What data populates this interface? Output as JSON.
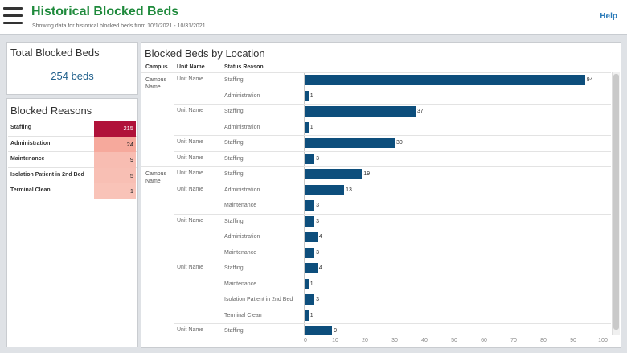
{
  "header": {
    "title": "Historical Blocked Beds",
    "subtitle": "Showing data for historical blocked beds from 10/1/2021 - 10/31/2021",
    "help_label": "Help",
    "menu_icon": "hamburger-menu-icon"
  },
  "colors": {
    "title_green": "#1f8a3c",
    "accent_blue": "#1f5f8b",
    "bar_blue": "#0d4e7c",
    "heat_dark": "#b0123a",
    "heat_light": "#f7b8ae"
  },
  "total_panel": {
    "title": "Total Blocked Beds",
    "value": "254",
    "unit": "beds"
  },
  "reasons_panel": {
    "title": "Blocked Reasons",
    "rows": [
      {
        "label": "Staffing",
        "value": "215",
        "color": "#b0123a",
        "text_color": "#ffffff"
      },
      {
        "label": "Administration",
        "value": "24",
        "color": "#f6a99c",
        "text_color": "#222222"
      },
      {
        "label": "Maintenance",
        "value": "9",
        "color": "#f8bdb2",
        "text_color": "#222222"
      },
      {
        "label": "Isolation Patient in 2nd Bed",
        "value": "5",
        "color": "#f8bfb4",
        "text_color": "#222222"
      },
      {
        "label": "Terminal Clean",
        "value": "1",
        "color": "#f9c3b8",
        "text_color": "#222222"
      }
    ]
  },
  "location_panel": {
    "title": "Blocked Beds by Location",
    "columns": {
      "campus": "Campus",
      "unit": "Unit Name",
      "status": "Status Reason"
    }
  },
  "chart_data": {
    "type": "bar",
    "orientation": "horizontal",
    "title": "Blocked Beds by Location",
    "xlim": [
      0,
      100
    ],
    "x_ticks": [
      0,
      10,
      20,
      30,
      40,
      50,
      60,
      70,
      80,
      90,
      100
    ],
    "rows": [
      {
        "campus": "Campus Name",
        "unit": "Unit Name",
        "status": "Staffing",
        "value": 94
      },
      {
        "campus": "",
        "unit": "",
        "status": "Administration",
        "value": 1
      },
      {
        "campus": "",
        "unit": "Unit Name",
        "status": "Staffing",
        "value": 37
      },
      {
        "campus": "",
        "unit": "",
        "status": "Administration",
        "value": 1
      },
      {
        "campus": "",
        "unit": "Unit Name",
        "status": "Staffing",
        "value": 30
      },
      {
        "campus": "",
        "unit": "Unit Name",
        "status": "Staffing",
        "value": 3
      },
      {
        "campus": "Campus Name",
        "unit": "Unit Name",
        "status": "Staffing",
        "value": 19
      },
      {
        "campus": "",
        "unit": "Unit Name",
        "status": "Administration",
        "value": 13
      },
      {
        "campus": "",
        "unit": "",
        "status": "Maintenance",
        "value": 3
      },
      {
        "campus": "",
        "unit": "Unit Name",
        "status": "Staffing",
        "value": 3
      },
      {
        "campus": "",
        "unit": "",
        "status": "Administration",
        "value": 4
      },
      {
        "campus": "",
        "unit": "",
        "status": "Maintenance",
        "value": 3
      },
      {
        "campus": "",
        "unit": "Unit Name",
        "status": "Staffing",
        "value": 4
      },
      {
        "campus": "",
        "unit": "",
        "status": "Maintenance",
        "value": 1
      },
      {
        "campus": "",
        "unit": "",
        "status": "Isolation Patient in 2nd Bed",
        "value": 3
      },
      {
        "campus": "",
        "unit": "",
        "status": "Terminal Clean",
        "value": 1
      },
      {
        "campus": "",
        "unit": "Unit Name",
        "status": "Staffing",
        "value": 9
      }
    ]
  }
}
